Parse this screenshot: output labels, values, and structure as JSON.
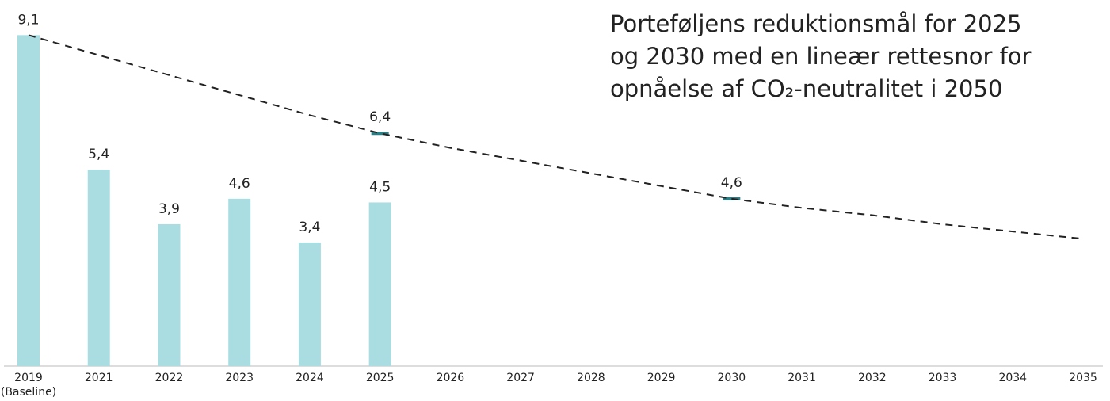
{
  "chart_data": {
    "type": "bar",
    "title": [
      "Porteføljens reduktionsmål for 2025",
      "og 2030 med en lineær rettesnor for",
      "opnåelse af CO₂-neutralitet i 2050"
    ],
    "categories": [
      "2019\n(Baseline)",
      "2021",
      "2022",
      "2023",
      "2024",
      "2025",
      "2026",
      "2027",
      "2028",
      "2029",
      "2030",
      "2031",
      "2032",
      "2033",
      "2034",
      "2035"
    ],
    "ylim": [
      0,
      10
    ],
    "series": [
      {
        "type": "bar",
        "color": "#a9dde2",
        "values": [
          9.1,
          5.4,
          3.9,
          4.6,
          3.4,
          4.5,
          null,
          null,
          null,
          null,
          null,
          null,
          null,
          null,
          null,
          null
        ],
        "value_labels": [
          "9,1",
          "5,4",
          "3,9",
          "4,6",
          "3,4",
          "4,5",
          null,
          null,
          null,
          null,
          null,
          null,
          null,
          null,
          null,
          null
        ]
      },
      {
        "type": "marker",
        "color": "#2b7f86",
        "values": [
          null,
          null,
          null,
          null,
          null,
          6.4,
          null,
          null,
          null,
          null,
          4.6,
          null,
          null,
          null,
          null,
          null
        ],
        "value_labels": [
          null,
          null,
          null,
          null,
          null,
          "6,4",
          null,
          null,
          null,
          null,
          "4,6",
          null,
          null,
          null,
          null,
          null
        ]
      },
      {
        "type": "line",
        "color": "#222222",
        "values": [
          9.1,
          8.55,
          8.0,
          7.45,
          6.9,
          6.4,
          6.0,
          5.65,
          5.3,
          4.95,
          4.6,
          4.35,
          4.15,
          3.9,
          3.7,
          3.5
        ]
      }
    ]
  }
}
